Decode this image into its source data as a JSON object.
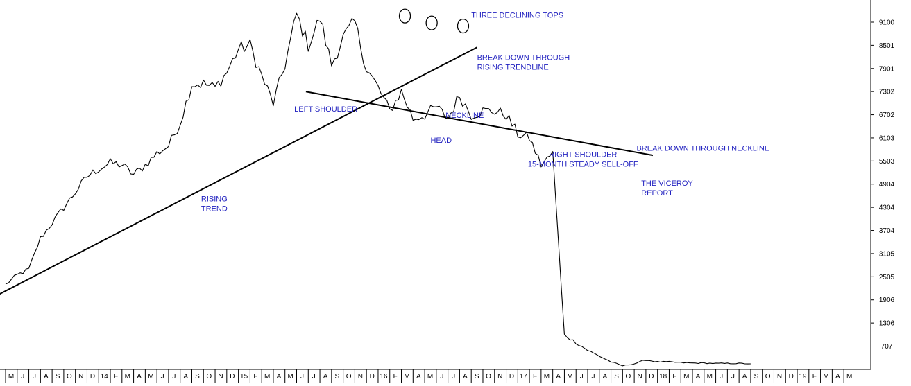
{
  "chart_data": {
    "type": "line",
    "y_ticks": [
      707,
      1306,
      1906,
      2505,
      3105,
      3704,
      4304,
      4904,
      5503,
      6103,
      6702,
      7302,
      7901,
      8501,
      9100
    ],
    "ylim": [
      100,
      9400
    ],
    "x_tick_labels": [
      "M",
      "J",
      "J",
      "A",
      "S",
      "O",
      "N",
      "D",
      "14",
      "F",
      "M",
      "A",
      "M",
      "J",
      "J",
      "A",
      "S",
      "O",
      "N",
      "D",
      "15",
      "F",
      "M",
      "A",
      "M",
      "J",
      "J",
      "A",
      "S",
      "O",
      "N",
      "D",
      "16",
      "F",
      "M",
      "A",
      "M",
      "J",
      "J",
      "A",
      "S",
      "O",
      "N",
      "D",
      "17",
      "F",
      "M",
      "A",
      "M",
      "J",
      "J",
      "A",
      "S",
      "O",
      "N",
      "D",
      "18",
      "F",
      "M",
      "A",
      "M",
      "J",
      "J",
      "A",
      "S",
      "O",
      "N",
      "D",
      "19",
      "F",
      "M",
      "A",
      "M"
    ],
    "x_months": [
      "2013-05",
      "2013-06",
      "2013-07",
      "2013-08",
      "2013-09",
      "2013-10",
      "2013-11",
      "2013-12",
      "2014-01",
      "2014-02",
      "2014-03",
      "2014-04",
      "2014-05",
      "2014-06",
      "2014-07",
      "2014-08",
      "2014-09",
      "2014-10",
      "2014-11",
      "2014-12",
      "2015-01",
      "2015-02",
      "2015-03",
      "2015-04",
      "2015-05",
      "2015-06",
      "2015-07",
      "2015-08",
      "2015-09",
      "2015-10",
      "2015-11",
      "2015-12",
      "2016-01",
      "2016-02",
      "2016-03",
      "2016-04",
      "2016-05",
      "2016-06",
      "2016-07",
      "2016-08",
      "2016-09",
      "2016-10",
      "2016-11",
      "2016-12",
      "2017-01",
      "2017-02",
      "2017-03",
      "2017-04",
      "2017-05",
      "2017-06",
      "2017-07",
      "2017-08",
      "2017-09",
      "2017-10",
      "2017-11",
      "2017-12",
      "2018-01",
      "2018-02",
      "2018-03",
      "2018-04",
      "2018-05",
      "2018-06",
      "2018-07",
      "2018-08",
      "2018-09",
      "2018-10",
      "2018-11",
      "2018-12",
      "2019-01",
      "2019-02",
      "2019-03",
      "2019-04",
      "2019-05"
    ],
    "series": [
      {
        "values": [
          2300,
          2550,
          2700,
          3500,
          3900,
          4300,
          4700,
          5100,
          5300,
          5450,
          5400,
          5150,
          5400,
          5700,
          5900,
          6500,
          7500,
          7500,
          7400,
          7800,
          8400,
          8500,
          7700,
          7000,
          8000,
          9300,
          8500,
          9200,
          8000,
          8700,
          9100,
          7900,
          7400,
          6800,
          7300,
          6600,
          6700,
          6900,
          6600,
          7200,
          6700,
          6800,
          6800,
          6700,
          6200,
          6100,
          5400,
          5700,
          1000,
          800,
          600,
          450,
          300,
          200,
          250,
          350,
          300,
          300,
          280,
          270,
          270,
          260,
          260,
          260,
          250
        ]
      }
    ],
    "trendlines": [
      {
        "from": [
          -1.2,
          1950
        ],
        "to": [
          40.5,
          8450
        ]
      },
      {
        "from": [
          25.8,
          7300
        ],
        "to": [
          55.6,
          5650
        ]
      }
    ],
    "circled_peaks": [
      {
        "x": 34.3,
        "y": 9260
      },
      {
        "x": 36.6,
        "y": 9080
      },
      {
        "x": 39.3,
        "y": 9000
      }
    ],
    "annotations": [
      {
        "lines": [
          "THREE DECLINING TOPS"
        ],
        "x": 40.0,
        "y": 9220,
        "align": "start"
      },
      {
        "lines": [
          "BREAK DOWN THROUGH",
          "RISING TRENDLINE"
        ],
        "x": 40.5,
        "y": 8120,
        "align": "start"
      },
      {
        "lines": [
          "LEFT SHOULDER"
        ],
        "x": 24.8,
        "y": 6780,
        "align": "start"
      },
      {
        "lines": [
          "NECKLINE"
        ],
        "x": 37.8,
        "y": 6620,
        "align": "start"
      },
      {
        "lines": [
          "HEAD"
        ],
        "x": 36.5,
        "y": 5980,
        "align": "start"
      },
      {
        "lines": [
          "RIGHT SHOULDER",
          "15-MONTH STEADY SELL-OFF"
        ],
        "x": 49.6,
        "y": 5610,
        "align": "middle"
      },
      {
        "lines": [
          "BREAK DOWN THROUGH NECKLINE"
        ],
        "x": 54.2,
        "y": 5770,
        "align": "start"
      },
      {
        "lines": [
          "THE VICEROY",
          "REPORT"
        ],
        "x": 54.6,
        "y": 4860,
        "align": "start"
      },
      {
        "lines": [
          "RISING",
          "TREND"
        ],
        "x": 16.8,
        "y": 4460,
        "align": "start"
      }
    ],
    "grid": false,
    "legend": "none"
  }
}
